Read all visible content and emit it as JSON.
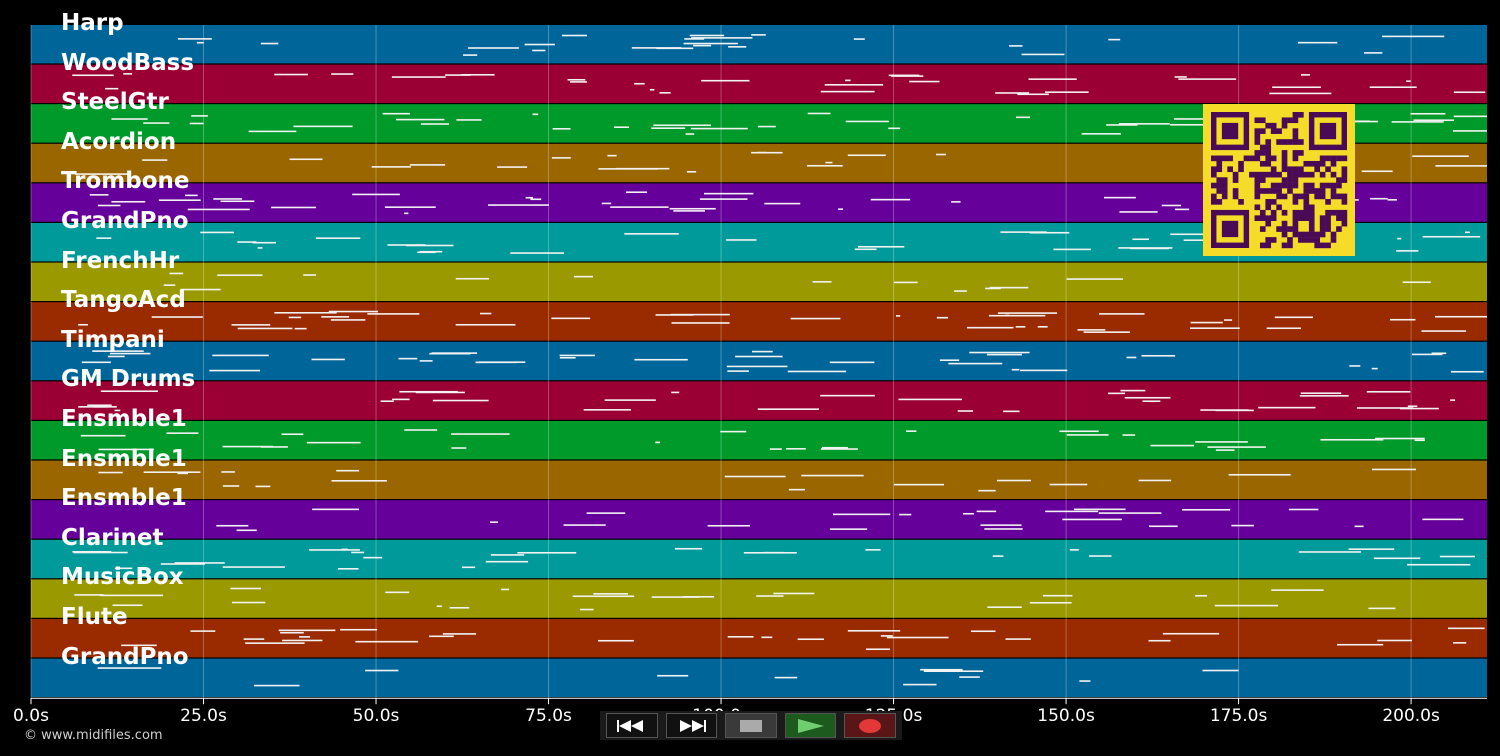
{
  "tracks": [
    {
      "name": "Harp",
      "color": "#00669a"
    },
    {
      "name": "WoodBass",
      "color": "#9a0033"
    },
    {
      "name": "SteelGtr",
      "color": "#009a2a"
    },
    {
      "name": "Acordion",
      "color": "#9a6600"
    },
    {
      "name": "Trombone",
      "color": "#66009a"
    },
    {
      "name": "GrandPno",
      "color": "#009a9a"
    },
    {
      "name": "FrenchHr",
      "color": "#9a9a00"
    },
    {
      "name": "TangoAcd",
      "color": "#9a2a00"
    },
    {
      "name": "Timpani",
      "color": "#00669a"
    },
    {
      "name": "GM Drums",
      "color": "#9a0033"
    },
    {
      "name": "Ensmble1",
      "color": "#009a2a"
    },
    {
      "name": "Ensmble1",
      "color": "#9a6600"
    },
    {
      "name": "Ensmble1",
      "color": "#66009a"
    },
    {
      "name": "Clarinet",
      "color": "#009a9a"
    },
    {
      "name": "MusicBox",
      "color": "#9a9a00"
    },
    {
      "name": "Flute",
      "color": "#9a2a00"
    },
    {
      "name": "GrandPno",
      "color": "#00669a"
    }
  ],
  "timeline": {
    "ticks": [
      "0.0s",
      "25.0s",
      "50.0s",
      "75.0s",
      "100.0s",
      "125.0s",
      "150.0s",
      "175.0s",
      "200.0s"
    ],
    "tick_values": [
      0,
      25,
      50,
      75,
      100,
      125,
      150,
      175,
      200
    ],
    "max_seconds": 211
  },
  "footer": {
    "credit": "© www.midifiles.com"
  },
  "controls": [
    {
      "name": "rewind-button",
      "icon": "rewind-icon"
    },
    {
      "name": "fast-forward-button",
      "icon": "fast-forward-icon"
    },
    {
      "name": "stop-button",
      "icon": "stop-icon"
    },
    {
      "name": "play-button",
      "icon": "play-icon"
    },
    {
      "name": "record-button",
      "icon": "record-icon"
    }
  ],
  "qr": {
    "icon": "qr-code-icon",
    "fg": "#4a0a55",
    "bg": "#f5dc28"
  }
}
